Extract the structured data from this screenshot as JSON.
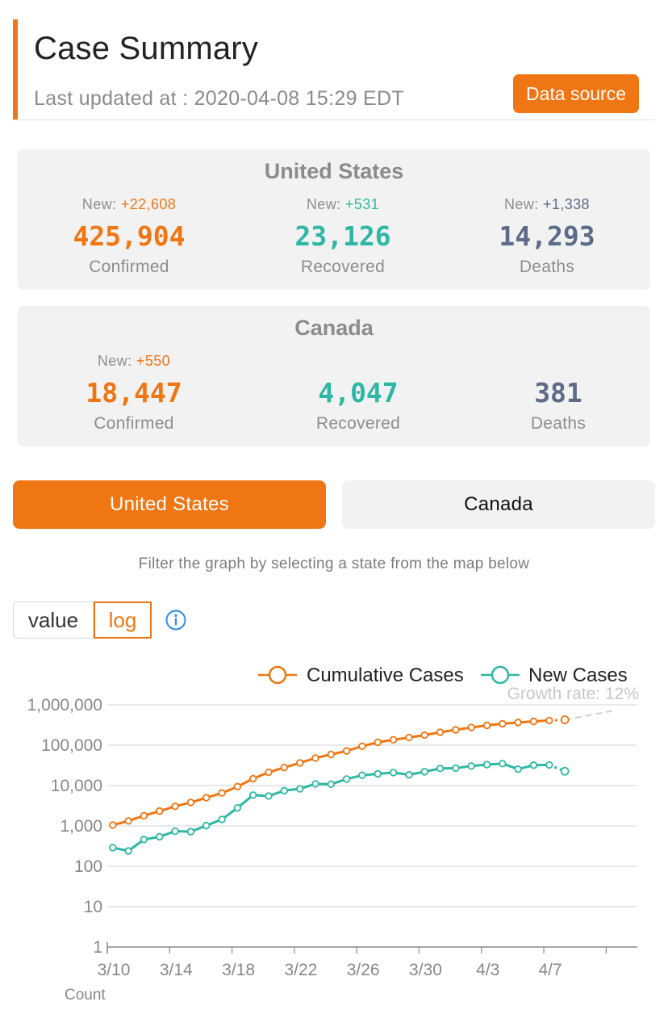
{
  "header": {
    "title": "Case Summary",
    "updated": "Last updated at : 2020-04-08 15:29 EDT",
    "source_button": "Data source"
  },
  "summary": {
    "us": {
      "title": "United States",
      "confirmed": {
        "new": "New: ",
        "new_val": "+22,608",
        "num": "425,904",
        "label": "Confirmed"
      },
      "recovered": {
        "new": "New: ",
        "new_val": "+531",
        "num": "23,126",
        "label": "Recovered"
      },
      "deaths": {
        "new": "New: ",
        "new_val": "+1,338",
        "num": "14,293",
        "label": "Deaths"
      }
    },
    "canada": {
      "title": "Canada",
      "confirmed": {
        "new": "New: ",
        "new_val": "+550",
        "num": "18,447",
        "label": "Confirmed"
      },
      "recovered": {
        "num": "4,047",
        "label": "Recovered"
      },
      "deaths": {
        "num": "381",
        "label": "Deaths"
      }
    }
  },
  "tabs": {
    "active": "United States",
    "inactive": "Canada"
  },
  "hint": "Filter the graph by selecting a state from the map below",
  "scale_toggle": {
    "value": "value",
    "log": "log",
    "selected": "log"
  },
  "icons": {
    "info": "info-icon"
  },
  "colors": {
    "accent": "#ef7613",
    "teal": "#2fb7a6",
    "slate": "#5d6b8a"
  },
  "chart_data": {
    "type": "line",
    "yscale": "log",
    "ylim": [
      1,
      1000000
    ],
    "y_ticks": [
      "1,000,000",
      "100,000",
      "10,000",
      "1,000",
      "100",
      "10",
      "1"
    ],
    "x_ticks": [
      "3/10",
      "3/14",
      "3/18",
      "3/22",
      "3/26",
      "3/30",
      "4/3",
      "4/7"
    ],
    "xlabel": "Count",
    "growth_label": "Growth rate: 12%",
    "categories": [
      "3/10",
      "3/11",
      "3/12",
      "3/13",
      "3/14",
      "3/15",
      "3/16",
      "3/17",
      "3/18",
      "3/19",
      "3/20",
      "3/21",
      "3/22",
      "3/23",
      "3/24",
      "3/25",
      "3/26",
      "3/27",
      "3/28",
      "3/29",
      "3/30",
      "3/31",
      "4/1",
      "4/2",
      "4/3",
      "4/4",
      "4/5",
      "4/6",
      "4/7",
      "4/8"
    ],
    "series": [
      {
        "name": "Cumulative Cases",
        "color": "#ef7613",
        "values": [
          1050,
          1330,
          1790,
          2330,
          3070,
          3820,
          4990,
          6540,
          9400,
          14800,
          21300,
          28000,
          36400,
          48000,
          59000,
          72000,
          94000,
          118000,
          136000,
          155000,
          178000,
          209000,
          240000,
          275000,
          309000,
          340000,
          365000,
          389000,
          409000,
          425904
        ]
      },
      {
        "name": "New Cases",
        "color": "#2fb7a6",
        "values": [
          290,
          240,
          460,
          540,
          740,
          720,
          1020,
          1450,
          2800,
          5800,
          5500,
          7500,
          8300,
          11000,
          10800,
          14500,
          18000,
          19500,
          21000,
          18500,
          22000,
          26500,
          27000,
          30500,
          33000,
          35000,
          25500,
          32000,
          32500,
          22608
        ]
      }
    ],
    "projection": {
      "from": "4/8",
      "to": "4/11",
      "values": [
        425904,
        700000
      ]
    }
  }
}
